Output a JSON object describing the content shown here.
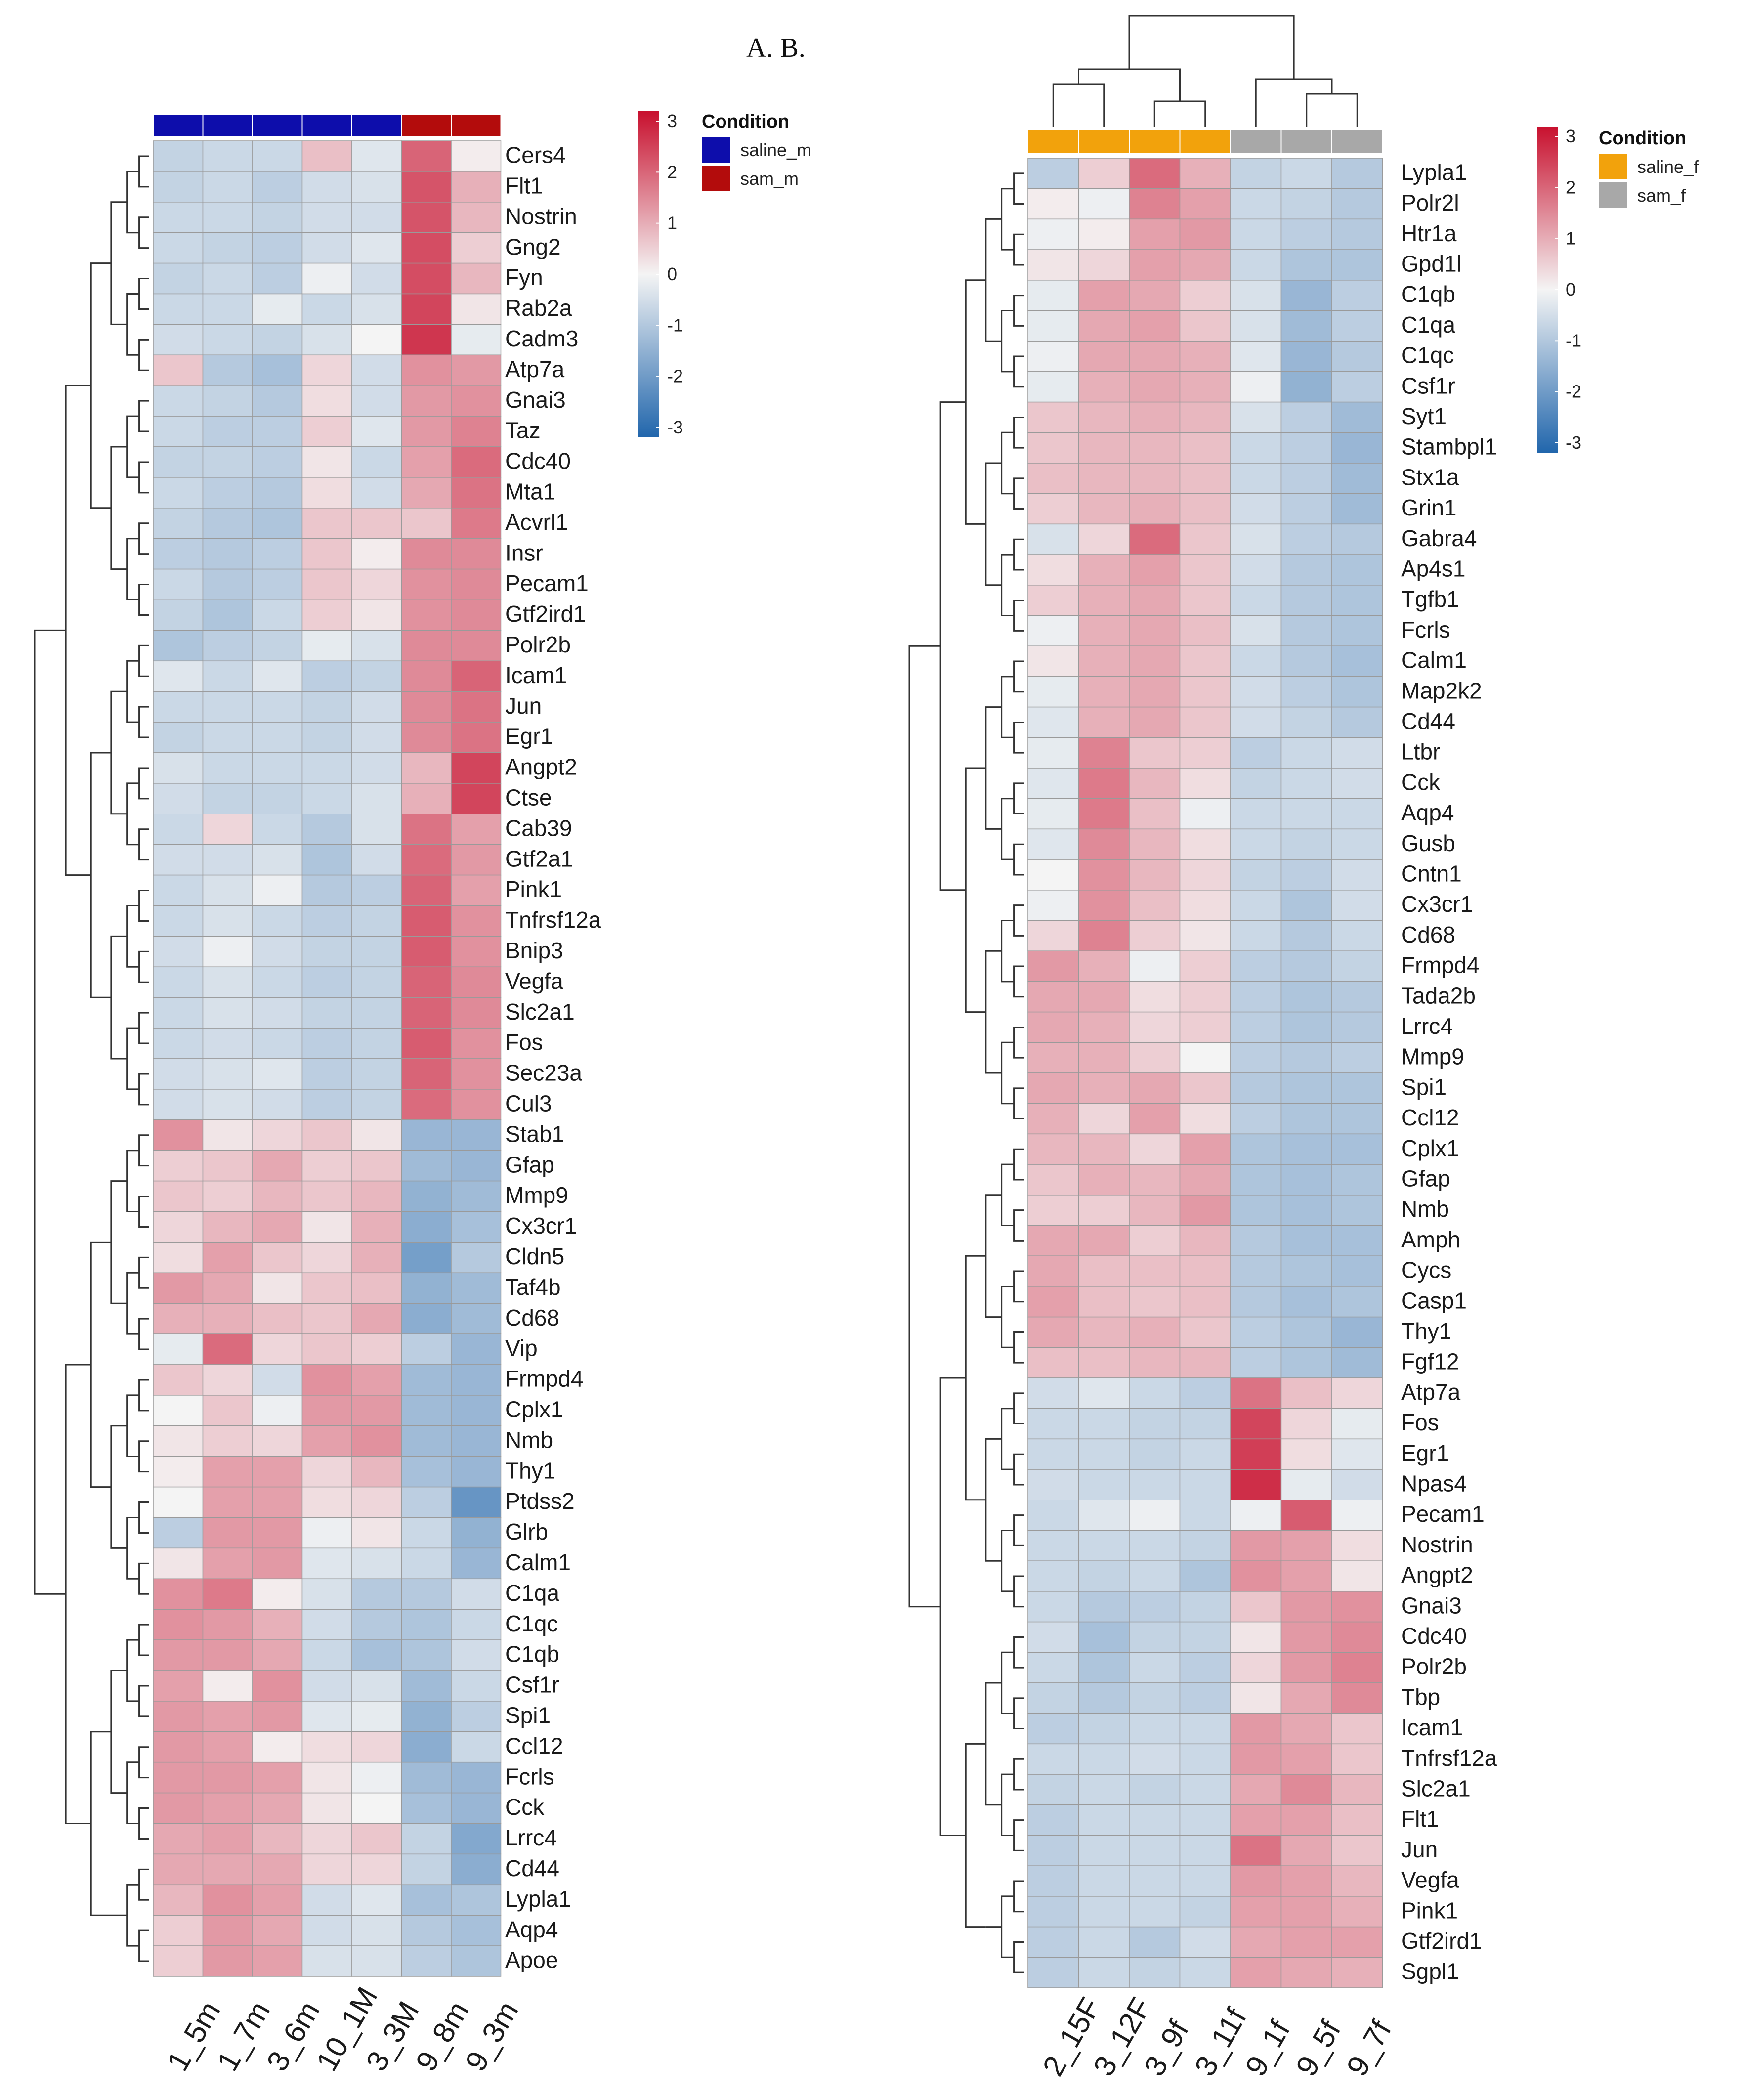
{
  "figure_label": "A. B.",
  "colors": {
    "low": "#2166ac",
    "mid": "#f4f4f4",
    "high": "#c8102e",
    "saline_m": "#0d0dab",
    "sam_m": "#b30c0c",
    "saline_f": "#f2a20c",
    "sam_f": "#a8a8a8"
  },
  "chart_data": [
    {
      "type": "heatmap",
      "panel": "A",
      "title": "",
      "scale": {
        "min": -3,
        "max": 3,
        "ticks": [
          "3",
          "2",
          "1",
          "0",
          "-1",
          "-2",
          "-3"
        ]
      },
      "legend": {
        "title": "Condition",
        "entries": [
          {
            "label": "saline_m",
            "color": "#0d0dab"
          },
          {
            "label": "sam_m",
            "color": "#b30c0c"
          }
        ]
      },
      "samples": [
        "1_5m",
        "1_7m",
        "3_6m",
        "10_1M",
        "3_3M",
        "9_8m",
        "9_3m"
      ],
      "sample_conditions": [
        "saline_m",
        "saline_m",
        "saline_m",
        "saline_m",
        "saline_m",
        "sam_m",
        "sam_m"
      ],
      "genes": [
        "Cers4",
        "Flt1",
        "Nostrin",
        "Gng2",
        "Fyn",
        "Rab2a",
        "Cadm3",
        "Atp7a",
        "Gnai3",
        "Taz",
        "Cdc40",
        "Mta1",
        "Acvrl1",
        "Insr",
        "Pecam1",
        "Gtf2ird1",
        "Polr2b",
        "Icam1",
        "Jun",
        "Egr1",
        "Angpt2",
        "Ctse",
        "Cab39",
        "Gtf2a1",
        "Pink1",
        "Tnfrsf12a",
        "Bnip3",
        "Vegfa",
        "Slc2a1",
        "Fos",
        "Sec23a",
        "Cul3",
        "Stab1",
        "Gfap",
        "Mmp9",
        "Cx3cr1",
        "Cldn5",
        "Taf4b",
        "Cd68",
        "Vip",
        "Frmpd4",
        "Cplx1",
        "Nmb",
        "Thy1",
        "Ptdss2",
        "Glrb",
        "Calm1",
        "C1qa",
        "C1qc",
        "C1qb",
        "Csf1r",
        "Spi1",
        "Ccl12",
        "Fcrls",
        "Cck",
        "Lrrc4",
        "Cd44",
        "Lypla1",
        "Aqp4",
        "Apoe"
      ],
      "values": [
        [
          -0.7,
          -0.6,
          -0.6,
          0.7,
          -0.3,
          1.9,
          0.1
        ],
        [
          -0.7,
          -0.6,
          -0.8,
          -0.5,
          -0.4,
          2.1,
          0.9
        ],
        [
          -0.6,
          -0.6,
          -0.7,
          -0.5,
          -0.5,
          2.1,
          0.8
        ],
        [
          -0.6,
          -0.7,
          -0.8,
          -0.5,
          -0.3,
          2.2,
          0.5
        ],
        [
          -0.7,
          -0.6,
          -0.8,
          -0.1,
          -0.5,
          2.2,
          0.8
        ],
        [
          -0.6,
          -0.6,
          -0.2,
          -0.6,
          -0.4,
          2.3,
          0.2
        ],
        [
          -0.5,
          -0.6,
          -0.7,
          -0.4,
          0.0,
          2.5,
          -0.2
        ],
        [
          0.6,
          -0.9,
          -1.1,
          0.4,
          -0.5,
          1.3,
          1.2
        ],
        [
          -0.6,
          -0.7,
          -0.9,
          0.3,
          -0.5,
          1.2,
          1.3
        ],
        [
          -0.6,
          -0.8,
          -0.8,
          0.5,
          -0.3,
          1.2,
          1.5
        ],
        [
          -0.7,
          -0.7,
          -0.8,
          0.2,
          -0.6,
          1.1,
          1.8
        ],
        [
          -0.6,
          -0.8,
          -0.9,
          0.3,
          -0.5,
          1.0,
          1.7
        ],
        [
          -0.7,
          -0.9,
          -1.0,
          0.6,
          0.6,
          0.6,
          1.6
        ],
        [
          -0.8,
          -0.9,
          -0.8,
          0.6,
          0.1,
          1.4,
          1.4
        ],
        [
          -0.6,
          -0.9,
          -0.8,
          0.6,
          0.4,
          1.3,
          1.4
        ],
        [
          -0.7,
          -1.0,
          -0.6,
          0.5,
          0.2,
          1.3,
          1.4
        ],
        [
          -1.0,
          -0.8,
          -0.7,
          -0.2,
          -0.4,
          1.4,
          1.4
        ],
        [
          -0.3,
          -0.6,
          -0.3,
          -0.8,
          -0.7,
          1.4,
          1.9
        ],
        [
          -0.6,
          -0.6,
          -0.6,
          -0.7,
          -0.5,
          1.4,
          1.7
        ],
        [
          -0.7,
          -0.6,
          -0.6,
          -0.7,
          -0.5,
          1.4,
          1.7
        ],
        [
          -0.4,
          -0.6,
          -0.6,
          -0.6,
          -0.5,
          0.8,
          2.3
        ],
        [
          -0.5,
          -0.7,
          -0.7,
          -0.6,
          -0.4,
          0.9,
          2.3
        ],
        [
          -0.6,
          0.4,
          -0.6,
          -0.9,
          -0.4,
          1.7,
          1.1
        ],
        [
          -0.5,
          -0.5,
          -0.4,
          -1.0,
          -0.5,
          1.8,
          1.2
        ],
        [
          -0.6,
          -0.4,
          -0.1,
          -0.9,
          -0.8,
          1.9,
          1.1
        ],
        [
          -0.6,
          -0.4,
          -0.6,
          -0.8,
          -0.7,
          2.0,
          1.3
        ],
        [
          -0.5,
          -0.1,
          -0.5,
          -0.7,
          -0.7,
          2.0,
          1.3
        ],
        [
          -0.6,
          -0.4,
          -0.6,
          -0.8,
          -0.7,
          1.9,
          1.4
        ],
        [
          -0.6,
          -0.4,
          -0.5,
          -0.7,
          -0.7,
          1.9,
          1.4
        ],
        [
          -0.6,
          -0.5,
          -0.6,
          -0.8,
          -0.7,
          2.0,
          1.3
        ],
        [
          -0.5,
          -0.4,
          -0.3,
          -0.8,
          -0.7,
          1.9,
          1.3
        ],
        [
          -0.5,
          -0.4,
          -0.5,
          -0.8,
          -0.7,
          1.8,
          1.3
        ],
        [
          1.3,
          0.2,
          0.4,
          0.6,
          0.2,
          -1.3,
          -1.3
        ],
        [
          0.5,
          0.6,
          1.0,
          0.5,
          0.6,
          -1.2,
          -1.3
        ],
        [
          0.6,
          0.5,
          0.8,
          0.6,
          0.8,
          -1.4,
          -1.2
        ],
        [
          0.4,
          0.8,
          1.0,
          0.2,
          0.9,
          -1.5,
          -1.1
        ],
        [
          0.3,
          1.1,
          0.6,
          0.4,
          0.9,
          -1.8,
          -0.9
        ],
        [
          1.2,
          1.0,
          0.2,
          0.6,
          0.7,
          -1.4,
          -1.2
        ],
        [
          0.9,
          0.9,
          0.7,
          0.6,
          1.0,
          -1.5,
          -1.2
        ],
        [
          -0.2,
          1.8,
          0.4,
          0.6,
          0.5,
          -0.8,
          -1.3
        ],
        [
          0.6,
          0.4,
          -0.5,
          1.3,
          1.1,
          -1.2,
          -1.3
        ],
        [
          0.0,
          0.6,
          -0.1,
          1.2,
          1.2,
          -1.2,
          -1.3
        ],
        [
          0.2,
          0.5,
          0.4,
          1.1,
          1.3,
          -1.2,
          -1.3
        ],
        [
          0.1,
          1.1,
          1.1,
          0.4,
          0.8,
          -1.1,
          -1.3
        ],
        [
          0.0,
          1.1,
          1.1,
          0.3,
          0.4,
          -0.8,
          -2.0
        ],
        [
          -0.8,
          1.2,
          1.2,
          -0.1,
          0.2,
          -0.6,
          -1.4
        ],
        [
          0.2,
          1.1,
          1.2,
          -0.3,
          -0.4,
          -0.6,
          -1.3
        ],
        [
          1.3,
          1.6,
          0.1,
          -0.4,
          -0.9,
          -0.9,
          -0.5
        ],
        [
          1.3,
          1.2,
          0.9,
          -0.5,
          -0.9,
          -1.0,
          -0.6
        ],
        [
          1.2,
          1.2,
          1.0,
          -0.6,
          -1.1,
          -1.0,
          -0.5
        ],
        [
          1.1,
          0.1,
          1.3,
          -0.5,
          -0.4,
          -1.2,
          -0.6
        ],
        [
          1.2,
          1.1,
          1.2,
          -0.3,
          -0.2,
          -1.4,
          -0.8
        ],
        [
          1.2,
          1.1,
          0.1,
          0.3,
          0.4,
          -1.5,
          -0.6
        ],
        [
          1.2,
          1.2,
          1.1,
          0.2,
          -0.1,
          -1.2,
          -1.3
        ],
        [
          1.2,
          1.1,
          1.0,
          0.2,
          0.0,
          -1.1,
          -1.3
        ],
        [
          1.0,
          1.1,
          0.8,
          0.4,
          0.6,
          -0.7,
          -1.6
        ],
        [
          1.0,
          1.0,
          1.0,
          0.4,
          0.4,
          -0.7,
          -1.5
        ],
        [
          0.8,
          1.3,
          1.1,
          -0.5,
          -0.3,
          -1.1,
          -1.0
        ],
        [
          0.5,
          1.2,
          1.0,
          -0.5,
          -0.4,
          -0.9,
          -1.1
        ],
        [
          0.5,
          1.2,
          1.1,
          -0.4,
          -0.4,
          -0.8,
          -1.0
        ]
      ]
    },
    {
      "type": "heatmap",
      "panel": "B",
      "title": "",
      "scale": {
        "min": -3,
        "max": 3,
        "ticks": [
          "3",
          "2",
          "1",
          "0",
          "-1",
          "-2",
          "-3"
        ]
      },
      "legend": {
        "title": "Condition",
        "entries": [
          {
            "label": "saline_f",
            "color": "#f2a20c"
          },
          {
            "label": "sam_f",
            "color": "#a8a8a8"
          }
        ]
      },
      "samples": [
        "2_15F",
        "3_12F",
        "3_9f",
        "3_11f",
        "9_1f",
        "9_5f",
        "9_7f"
      ],
      "sample_conditions": [
        "saline_f",
        "saline_f",
        "saline_f",
        "saline_f",
        "sam_f",
        "sam_f",
        "sam_f"
      ],
      "genes": [
        "Lypla1",
        "Polr2l",
        "Htr1a",
        "Gpd1l",
        "C1qb",
        "C1qa",
        "C1qc",
        "Csf1r",
        "Syt1",
        "Stambpl1",
        "Stx1a",
        "Grin1",
        "Gabra4",
        "Ap4s1",
        "Tgfb1",
        "Fcrls",
        "Calm1",
        "Map2k2",
        "Cd44",
        "Ltbr",
        "Cck",
        "Aqp4",
        "Gusb",
        "Cntn1",
        "Cx3cr1",
        "Cd68",
        "Frmpd4",
        "Tada2b",
        "Lrrc4",
        "Mmp9",
        "Spi1",
        "Ccl12",
        "Cplx1",
        "Gfap",
        "Nmb",
        "Amph",
        "Cycs",
        "Casp1",
        "Thy1",
        "Fgf12",
        "Atp7a",
        "Fos",
        "Egr1",
        "Npas4",
        "Pecam1",
        "Nostrin",
        "Angpt2",
        "Gnai3",
        "Cdc40",
        "Polr2b",
        "Tbp",
        "Icam1",
        "Tnfrsf12a",
        "Slc2a1",
        "Flt1",
        "Jun",
        "Vegfa",
        "Pink1",
        "Gtf2ird1",
        "Sgpl1"
      ],
      "values": [
        [
          -0.8,
          0.5,
          1.8,
          0.9,
          -0.7,
          -0.6,
          -0.9
        ],
        [
          0.1,
          -0.1,
          1.5,
          1.1,
          -0.6,
          -0.7,
          -0.9
        ],
        [
          -0.1,
          0.1,
          1.1,
          1.2,
          -0.6,
          -0.8,
          -0.9
        ],
        [
          0.2,
          0.4,
          1.1,
          1.0,
          -0.6,
          -1.0,
          -1.0
        ],
        [
          -0.2,
          1.1,
          1.0,
          0.5,
          -0.4,
          -1.3,
          -0.8
        ],
        [
          -0.2,
          1.0,
          1.1,
          0.6,
          -0.4,
          -1.2,
          -0.8
        ],
        [
          -0.1,
          1.0,
          1.0,
          0.9,
          -0.3,
          -1.3,
          -0.9
        ],
        [
          -0.2,
          0.9,
          1.0,
          0.9,
          -0.1,
          -1.4,
          -0.8
        ],
        [
          0.6,
          0.8,
          0.9,
          0.8,
          -0.4,
          -0.8,
          -1.2
        ],
        [
          0.6,
          0.8,
          0.8,
          0.7,
          -0.6,
          -0.8,
          -1.3
        ],
        [
          0.7,
          0.8,
          0.8,
          0.7,
          -0.6,
          -0.8,
          -1.2
        ],
        [
          0.5,
          0.8,
          0.9,
          0.7,
          -0.5,
          -0.8,
          -1.2
        ],
        [
          -0.4,
          0.4,
          1.8,
          0.6,
          -0.4,
          -0.8,
          -0.9
        ],
        [
          0.3,
          0.9,
          1.1,
          0.6,
          -0.5,
          -0.9,
          -1.0
        ],
        [
          0.5,
          0.9,
          1.0,
          0.6,
          -0.6,
          -0.9,
          -1.0
        ],
        [
          -0.1,
          0.9,
          1.0,
          0.7,
          -0.4,
          -0.9,
          -1.0
        ],
        [
          0.2,
          0.9,
          1.0,
          0.6,
          -0.6,
          -0.9,
          -1.1
        ],
        [
          -0.2,
          0.9,
          1.0,
          0.6,
          -0.5,
          -0.8,
          -1.0
        ],
        [
          -0.3,
          0.9,
          1.0,
          0.6,
          -0.5,
          -0.7,
          -0.9
        ],
        [
          -0.2,
          1.5,
          0.6,
          0.5,
          -0.8,
          -0.6,
          -0.5
        ],
        [
          -0.3,
          1.6,
          0.8,
          0.3,
          -0.7,
          -0.6,
          -0.5
        ],
        [
          -0.2,
          1.6,
          0.7,
          -0.1,
          -0.6,
          -0.6,
          -0.6
        ],
        [
          -0.3,
          1.4,
          0.8,
          0.3,
          -0.6,
          -0.7,
          -0.6
        ],
        [
          0.0,
          1.3,
          0.8,
          0.4,
          -0.7,
          -0.8,
          -0.5
        ],
        [
          -0.1,
          1.3,
          0.7,
          0.3,
          -0.6,
          -1.0,
          -0.5
        ],
        [
          0.4,
          1.5,
          0.5,
          0.2,
          -0.6,
          -0.9,
          -0.6
        ],
        [
          1.2,
          0.9,
          -0.1,
          0.5,
          -0.8,
          -0.9,
          -0.7
        ],
        [
          1.0,
          1.0,
          0.3,
          0.5,
          -0.8,
          -1.0,
          -0.9
        ],
        [
          1.0,
          0.9,
          0.4,
          0.5,
          -0.8,
          -1.0,
          -0.9
        ],
        [
          0.9,
          0.9,
          0.5,
          0.0,
          -0.8,
          -0.9,
          -0.8
        ],
        [
          1.0,
          0.9,
          1.0,
          0.6,
          -0.9,
          -1.0,
          -1.0
        ],
        [
          0.9,
          0.4,
          1.1,
          0.3,
          -0.8,
          -1.0,
          -1.0
        ],
        [
          0.8,
          0.8,
          0.4,
          1.1,
          -1.0,
          -1.1,
          -1.1
        ],
        [
          0.6,
          0.9,
          0.8,
          1.0,
          -1.0,
          -1.1,
          -1.0
        ],
        [
          0.5,
          0.5,
          0.8,
          1.2,
          -1.0,
          -1.1,
          -1.0
        ],
        [
          1.0,
          1.0,
          0.5,
          0.8,
          -0.9,
          -1.1,
          -1.1
        ],
        [
          1.0,
          0.7,
          0.7,
          0.7,
          -0.9,
          -1.0,
          -1.1
        ],
        [
          1.1,
          0.7,
          0.6,
          0.7,
          -0.9,
          -1.1,
          -1.0
        ],
        [
          1.0,
          0.8,
          0.9,
          0.6,
          -0.8,
          -1.0,
          -1.3
        ],
        [
          0.7,
          0.7,
          0.8,
          0.8,
          -0.8,
          -1.0,
          -1.2
        ],
        [
          -0.5,
          -0.3,
          -0.6,
          -0.8,
          1.7,
          0.7,
          0.4
        ],
        [
          -0.6,
          -0.6,
          -0.7,
          -0.7,
          2.3,
          0.4,
          -0.2
        ],
        [
          -0.6,
          -0.6,
          -0.7,
          -0.6,
          2.4,
          0.3,
          -0.3
        ],
        [
          -0.5,
          -0.6,
          -0.6,
          -0.6,
          2.6,
          -0.2,
          -0.5
        ],
        [
          -0.6,
          -0.3,
          -0.1,
          -0.6,
          -0.1,
          2.0,
          -0.1
        ],
        [
          -0.6,
          -0.6,
          -0.6,
          -0.7,
          1.2,
          1.1,
          0.3
        ],
        [
          -0.6,
          -0.7,
          -0.6,
          -1.0,
          1.3,
          1.1,
          0.2
        ],
        [
          -0.6,
          -0.9,
          -0.8,
          -0.7,
          0.6,
          1.2,
          1.3
        ],
        [
          -0.5,
          -1.1,
          -0.7,
          -0.7,
          0.2,
          1.2,
          1.4
        ],
        [
          -0.6,
          -1.0,
          -0.6,
          -0.8,
          0.4,
          1.2,
          1.5
        ],
        [
          -0.7,
          -0.9,
          -0.7,
          -0.8,
          0.2,
          1.0,
          1.4
        ],
        [
          -0.8,
          -0.7,
          -0.6,
          -0.6,
          1.2,
          1.0,
          0.6
        ],
        [
          -0.6,
          -0.6,
          -0.5,
          -0.6,
          1.2,
          1.1,
          0.6
        ],
        [
          -0.7,
          -0.6,
          -0.7,
          -0.6,
          1.0,
          1.4,
          0.8
        ],
        [
          -0.8,
          -0.6,
          -0.6,
          -0.6,
          1.1,
          1.1,
          0.7
        ],
        [
          -0.8,
          -0.6,
          -0.6,
          -0.6,
          1.7,
          1.0,
          0.6
        ],
        [
          -0.8,
          -0.6,
          -0.6,
          -0.6,
          1.2,
          1.1,
          0.8
        ],
        [
          -0.8,
          -0.6,
          -0.6,
          -0.7,
          1.1,
          1.1,
          0.9
        ],
        [
          -0.8,
          -0.6,
          -0.9,
          -0.5,
          1.0,
          1.1,
          1.1
        ],
        [
          -0.8,
          -0.6,
          -0.7,
          -0.6,
          1.1,
          1.0,
          0.9
        ]
      ]
    }
  ]
}
